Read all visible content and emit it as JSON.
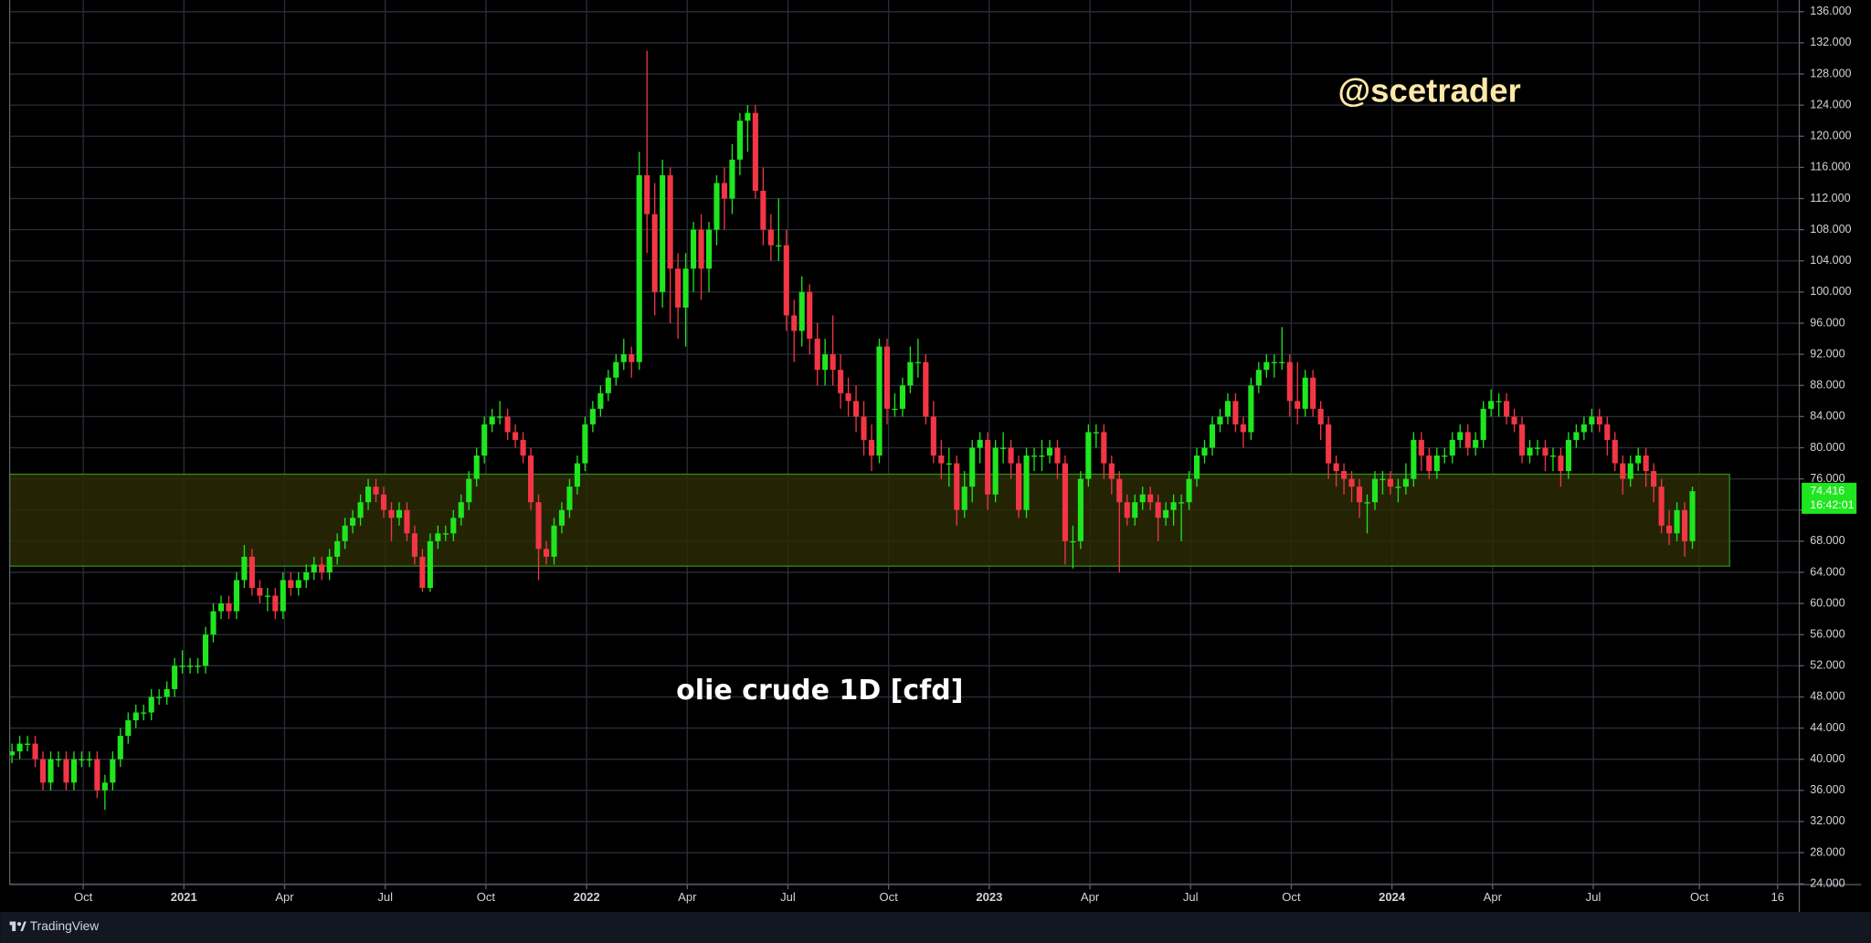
{
  "chart_data": {
    "type": "candlestick",
    "annotations": [
      "@scetrader",
      "olie crude 1D [cfd]"
    ],
    "countdown": "16:42:01",
    "brand": "TradingView",
    "up_color": "#1fe61f",
    "down_color": "#f23645",
    "grid": true,
    "xlim": [
      -0.3,
      230.8
    ],
    "xticks": [
      {
        "value": 9.2,
        "label": "Oct"
      },
      {
        "value": 22.2,
        "label": "2021"
      },
      {
        "value": 35.2,
        "label": "Apr"
      },
      {
        "value": 48.2,
        "label": "Jul"
      },
      {
        "value": 61.2,
        "label": "Oct"
      },
      {
        "value": 74.2,
        "label": "2022"
      },
      {
        "value": 87.2,
        "label": "Apr"
      },
      {
        "value": 100.2,
        "label": "Jul"
      },
      {
        "value": 113.2,
        "label": "Oct"
      },
      {
        "value": 126.2,
        "label": "2023"
      },
      {
        "value": 139.2,
        "label": "Apr"
      },
      {
        "value": 152.2,
        "label": "Jul"
      },
      {
        "value": 165.2,
        "label": "Oct"
      },
      {
        "value": 178.2,
        "label": "2024"
      },
      {
        "value": 191.2,
        "label": "Apr"
      },
      {
        "value": 204.2,
        "label": "Jul"
      },
      {
        "value": 217.9,
        "label": "Oct"
      },
      {
        "value": 228.0,
        "label": "16"
      }
    ],
    "ylim": [
      23.9,
      137.5
    ],
    "yticks": [
      {
        "value": 24,
        "label": "24.000"
      },
      {
        "value": 28,
        "label": "28.000"
      },
      {
        "value": 32,
        "label": "32.000"
      },
      {
        "value": 36,
        "label": "36.000"
      },
      {
        "value": 40,
        "label": "40.000"
      },
      {
        "value": 44,
        "label": "44.000"
      },
      {
        "value": 48,
        "label": "48.000"
      },
      {
        "value": 52,
        "label": "52.000"
      },
      {
        "value": 56,
        "label": "56.000"
      },
      {
        "value": 60,
        "label": "60.000"
      },
      {
        "value": 64,
        "label": "64.000"
      },
      {
        "value": 68,
        "label": "68.000"
      },
      {
        "value": 72,
        "label": "72.000"
      },
      {
        "value": 76,
        "label": "76.000"
      },
      {
        "value": 80,
        "label": "80.000"
      },
      {
        "value": 84,
        "label": "84.000"
      },
      {
        "value": 88,
        "label": "88.000"
      },
      {
        "value": 92,
        "label": "92.000"
      },
      {
        "value": 96,
        "label": "96.000"
      },
      {
        "value": 100,
        "label": "100.000"
      },
      {
        "value": 104,
        "label": "104.000"
      },
      {
        "value": 108,
        "label": "108.000"
      },
      {
        "value": 112,
        "label": "112.000"
      },
      {
        "value": 116,
        "label": "116.000"
      },
      {
        "value": 120,
        "label": "120.000"
      },
      {
        "value": 124,
        "label": "124.000"
      },
      {
        "value": 128,
        "label": "128.000"
      },
      {
        "value": 132,
        "label": "132.000"
      },
      {
        "value": 136,
        "label": "136.000"
      }
    ],
    "zone": {
      "xlim": [
        -0.3,
        221.8
      ],
      "ylim": [
        64.8,
        76.6
      ],
      "fill": "#2a2a06",
      "stroke": "#2f8a1e"
    },
    "series": [
      {
        "open": [
          40.5,
          41,
          42,
          42,
          40,
          37,
          40,
          40,
          37,
          40,
          40,
          40,
          36,
          37,
          40,
          43,
          45,
          46,
          46,
          48,
          48,
          49,
          52,
          52,
          52,
          52,
          56,
          59,
          60,
          59,
          63,
          66,
          62,
          61,
          61,
          59,
          63,
          62,
          63,
          64,
          65,
          64,
          66,
          68,
          70,
          71,
          73,
          75,
          74,
          72,
          71,
          72,
          69,
          66,
          62,
          68,
          69,
          69,
          71,
          73,
          76,
          79,
          83,
          84,
          84,
          82,
          81,
          79,
          73,
          67,
          66,
          70,
          72,
          75,
          78,
          83,
          85,
          87,
          89,
          91,
          92,
          91,
          115,
          110,
          100,
          115,
          103,
          98,
          103,
          108,
          103,
          108,
          114,
          112,
          117,
          122,
          123,
          113,
          108,
          106,
          106,
          97,
          95,
          100,
          94,
          90,
          92,
          90,
          87,
          86,
          84,
          81,
          79,
          93,
          85,
          85,
          88,
          91,
          91,
          84,
          79,
          78,
          78,
          72,
          75,
          80,
          81,
          74,
          80,
          80,
          78,
          72,
          79,
          79,
          79,
          80,
          78,
          68,
          68,
          76,
          82,
          82,
          78,
          76,
          73,
          71,
          73,
          74,
          73,
          71,
          72,
          73,
          73,
          76,
          79,
          80,
          83,
          84,
          86,
          83,
          82,
          88,
          90,
          91,
          91,
          91,
          86,
          85,
          89,
          85,
          83,
          78,
          77,
          76,
          75,
          73,
          73,
          76,
          76,
          75,
          75,
          76,
          81,
          79,
          77,
          79,
          79,
          81,
          82,
          80,
          81,
          85,
          86,
          86,
          84,
          83,
          79,
          80,
          80,
          79,
          79,
          77,
          81,
          82,
          83,
          84,
          83,
          81,
          78,
          76,
          78,
          79,
          77,
          75,
          70,
          69,
          72,
          68
        ],
        "high": [
          42,
          43,
          43,
          43,
          41,
          41,
          41,
          41,
          41,
          41,
          41,
          41,
          38,
          41,
          44,
          46,
          47,
          47,
          49,
          49,
          50,
          53,
          54,
          53,
          53,
          57,
          60,
          61,
          61,
          64,
          67.5,
          67,
          63,
          62,
          62,
          64,
          64,
          64,
          65,
          66,
          66,
          67,
          69,
          71,
          72,
          74,
          76,
          76,
          75,
          73,
          73,
          73,
          70,
          67,
          69,
          70,
          70,
          72,
          74,
          77,
          80,
          84,
          85,
          86,
          85,
          83,
          82,
          80,
          74,
          68,
          71,
          73,
          76,
          79,
          84,
          86,
          88,
          90,
          92,
          94,
          93,
          118,
          131,
          114,
          117,
          116,
          105,
          105,
          109,
          110,
          109,
          115,
          116,
          119,
          123,
          124,
          124,
          116,
          110,
          112,
          108,
          99,
          102,
          101,
          96,
          94,
          97,
          92,
          89,
          88,
          86,
          83,
          94,
          94,
          87,
          89,
          93,
          94,
          92,
          86,
          81,
          80,
          79,
          77,
          81,
          82,
          82,
          81,
          82,
          81,
          79,
          80,
          80,
          81,
          81,
          81,
          79,
          70,
          77,
          83,
          83,
          83,
          79,
          77,
          74,
          74,
          75,
          75,
          74,
          73,
          74,
          74,
          77,
          80,
          81,
          84,
          85,
          87,
          87,
          84,
          89,
          91,
          92,
          92,
          95.5,
          92,
          91,
          90,
          90,
          86,
          84,
          79,
          78,
          77,
          76,
          74,
          77,
          77,
          77,
          76,
          78,
          82,
          82,
          80,
          80,
          80,
          82,
          83,
          83,
          82,
          86,
          87.5,
          87,
          87,
          85,
          84,
          81,
          81,
          81,
          80,
          80,
          82,
          83,
          84,
          85,
          85,
          84,
          82,
          79,
          79,
          80,
          80,
          78,
          76,
          72,
          73,
          73,
          75
        ],
        "low": [
          39.5,
          40,
          41,
          39,
          36,
          36,
          39,
          36,
          36,
          39,
          39,
          35,
          33.5,
          36,
          39,
          42,
          44,
          45,
          45,
          47,
          47,
          48,
          51,
          51,
          51,
          51,
          55,
          58,
          58,
          58,
          62,
          61,
          60,
          59,
          58,
          58,
          61,
          61,
          62,
          63,
          63,
          63,
          65,
          67,
          69,
          70,
          72,
          73,
          71,
          68,
          70,
          68,
          65,
          61.5,
          61.5,
          67,
          68,
          68,
          70,
          72,
          75,
          78,
          82,
          83,
          81,
          80,
          78,
          72,
          63,
          65,
          65,
          69,
          71,
          74,
          77,
          82,
          84,
          86,
          88,
          90,
          89,
          90,
          105,
          97,
          98,
          96,
          94,
          93,
          100,
          99,
          100,
          106,
          108,
          110,
          115,
          118,
          112,
          106,
          104,
          104,
          95,
          91,
          93,
          92,
          88,
          88,
          88,
          85,
          84,
          82,
          79,
          77,
          78,
          83,
          84,
          84,
          87,
          89,
          83,
          78,
          76,
          75,
          70,
          71,
          73,
          78,
          72,
          73,
          78,
          76,
          71,
          71,
          77,
          77,
          78,
          76,
          65,
          64.5,
          67,
          75,
          80,
          76,
          74,
          64,
          70,
          70,
          72,
          72,
          68,
          70,
          70,
          68,
          72,
          75,
          78,
          79,
          82,
          83,
          82,
          80,
          81,
          87,
          89,
          89,
          90,
          84,
          83,
          84,
          84,
          81,
          76,
          75,
          74,
          73,
          71,
          69,
          72,
          74,
          74,
          73,
          74,
          75,
          77,
          76,
          76,
          78,
          78,
          80,
          79,
          79,
          80,
          84,
          84,
          83,
          82,
          78,
          78,
          79,
          77,
          77,
          75,
          76,
          80,
          81,
          82,
          82,
          79,
          77,
          74,
          75,
          77,
          75,
          73,
          69,
          67.5,
          68,
          66,
          67
        ],
        "close": [
          41,
          42,
          42,
          40,
          37,
          40,
          40,
          37,
          40,
          40,
          40,
          36,
          37,
          40,
          43,
          45,
          46,
          46,
          48,
          48,
          49,
          52,
          52,
          52,
          52,
          56,
          59,
          60,
          59,
          63,
          66,
          62,
          61,
          61,
          59,
          63,
          62,
          63,
          64,
          65,
          64,
          66,
          68,
          70,
          71,
          73,
          75,
          74,
          72,
          71,
          72,
          69,
          66,
          62,
          68,
          69,
          69,
          71,
          73,
          76,
          79,
          83,
          84,
          84,
          82,
          81,
          79,
          73,
          67,
          66,
          70,
          72,
          75,
          78,
          83,
          85,
          87,
          89,
          91,
          92,
          91,
          115,
          110,
          100,
          115,
          103,
          98,
          103,
          108,
          103,
          108,
          114,
          112,
          117,
          122,
          123,
          113,
          108,
          106,
          106,
          97,
          95,
          100,
          94,
          90,
          92,
          90,
          87,
          86,
          84,
          81,
          79,
          93,
          85,
          85,
          88,
          91,
          91,
          84,
          79,
          78,
          78,
          72,
          75,
          80,
          81,
          74,
          80,
          80,
          78,
          72,
          79,
          79,
          79,
          80,
          78,
          68,
          68,
          76,
          82,
          82,
          78,
          76,
          73,
          71,
          73,
          74,
          73,
          71,
          72,
          73,
          73,
          76,
          79,
          80,
          83,
          84,
          86,
          83,
          82,
          88,
          90,
          91,
          91,
          91,
          86,
          85,
          89,
          85,
          83,
          78,
          77,
          76,
          75,
          73,
          73,
          76,
          76,
          75,
          75,
          76,
          81,
          79,
          77,
          79,
          79,
          81,
          82,
          80,
          81,
          85,
          86,
          86,
          84,
          83,
          79,
          80,
          80,
          79,
          79,
          77,
          81,
          82,
          83,
          84,
          83,
          81,
          78,
          76,
          78,
          79,
          77,
          75,
          70,
          69,
          72,
          68,
          74.416
        ]
      }
    ]
  }
}
